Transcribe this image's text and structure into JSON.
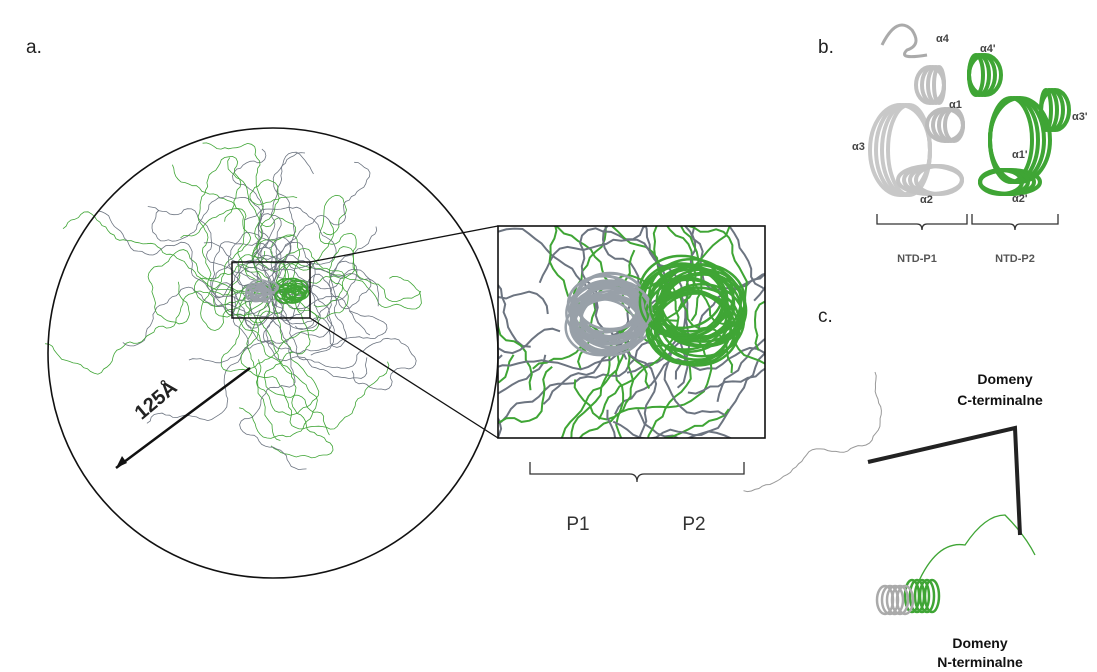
{
  "panels": {
    "a": {
      "label": "a.",
      "scale_label": "125Å",
      "brace_labels": [
        "P1",
        "P2"
      ]
    },
    "b": {
      "label": "b.",
      "helices": [
        "α4",
        "α4'",
        "α1",
        "α3",
        "α1'",
        "α3'",
        "α2",
        "α2'"
      ],
      "brace_labels": [
        "NTD-P1",
        "NTD-P2"
      ]
    },
    "c": {
      "label": "c.",
      "c_terminal": [
        "Domeny",
        "C-terminalne"
      ],
      "n_terminal": [
        "Domeny",
        "N-terminalne"
      ]
    }
  }
}
